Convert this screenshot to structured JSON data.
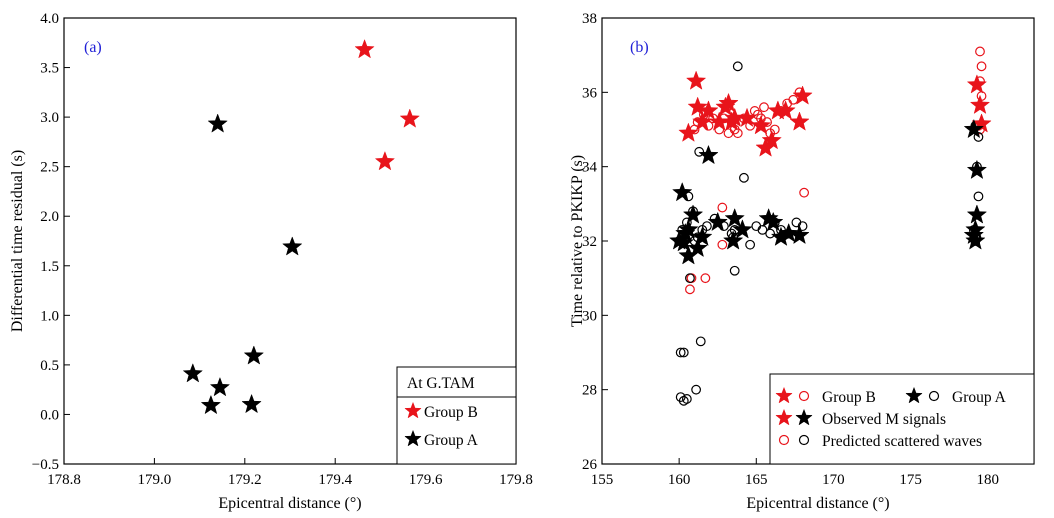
{
  "colors": {
    "group_b": "#e8141b",
    "group_a": "#000000",
    "panel_label": "#1f1fd6"
  },
  "chart_data": [
    {
      "type": "scatter",
      "panel_label": "(a)",
      "xlabel": "Epicentral distance (°)",
      "ylabel": "Differential time residual (s)",
      "xlim": [
        178.8,
        179.8
      ],
      "ylim": [
        -0.5,
        4.0
      ],
      "xticks": [
        178.8,
        179.0,
        179.2,
        179.4,
        179.6,
        179.8
      ],
      "xtick_labels": [
        "178.8",
        "179.0",
        "179.2",
        "179.4",
        "179.6",
        "179.8"
      ],
      "yticks": [
        -0.5,
        0.0,
        0.5,
        1.0,
        1.5,
        2.0,
        2.5,
        3.0,
        3.5,
        4.0
      ],
      "ytick_labels": [
        "−0.5",
        "0.0",
        "0.5",
        "1.0",
        "1.5",
        "2.0",
        "2.5",
        "3.0",
        "3.5",
        "4.0"
      ],
      "legend": {
        "title": "At G.TAM",
        "location": "lower-right",
        "entries": [
          "Group B",
          "Group A"
        ]
      },
      "series": [
        {
          "name": "Group B",
          "marker": "star",
          "color": "#e8141b",
          "x": [
            179.465,
            179.565,
            179.51
          ],
          "y": [
            3.68,
            2.98,
            2.55
          ]
        },
        {
          "name": "Group A",
          "marker": "star",
          "color": "#000000",
          "x": [
            179.14,
            179.305,
            179.085,
            179.145,
            179.22,
            179.125,
            179.215
          ],
          "y": [
            2.93,
            1.69,
            0.41,
            0.27,
            0.59,
            0.09,
            0.1
          ]
        }
      ]
    },
    {
      "type": "scatter",
      "panel_label": "(b)",
      "xlabel": "Epicentral distance (°)",
      "ylabel": "Time relative to PKIKP (s)",
      "xlim": [
        155,
        183
      ],
      "ylim": [
        26,
        38
      ],
      "xticks": [
        155,
        160,
        165,
        170,
        175,
        180
      ],
      "xtick_labels": [
        "155",
        "160",
        "165",
        "170",
        "175",
        "180"
      ],
      "yticks": [
        26,
        28,
        30,
        32,
        34,
        36,
        38
      ],
      "ytick_labels": [
        "26",
        "28",
        "30",
        "32",
        "34",
        "36",
        "38"
      ],
      "legend": {
        "location": "lower-right",
        "rows": [
          {
            "text": "Group B",
            "symbols": [
              "red-star",
              "red-circle"
            ]
          },
          {
            "text": "Group A",
            "symbols": [
              "black-star",
              "black-circle"
            ]
          },
          {
            "text": "Observed M signals",
            "symbols": [
              "red-star",
              "black-star"
            ]
          },
          {
            "text": "Predicted scattered waves",
            "symbols": [
              "red-circle",
              "black-circle"
            ]
          }
        ]
      },
      "series": [
        {
          "name": "Group B",
          "marker": "star",
          "color": "#e8141b",
          "x": [
            160.6,
            161.1,
            161.2,
            161.5,
            161.9,
            162.6,
            163.0,
            163.2,
            163.4,
            163.6,
            164.4,
            165.3,
            165.6,
            166.0,
            166.4,
            166.9,
            167.8,
            168.0,
            179.3,
            179.5,
            179.6
          ],
          "y": [
            34.9,
            36.3,
            35.6,
            35.2,
            35.5,
            35.2,
            35.6,
            35.7,
            35.2,
            35.3,
            35.3,
            35.1,
            34.5,
            34.7,
            35.5,
            35.5,
            35.2,
            35.9,
            36.2,
            35.65,
            35.15
          ]
        },
        {
          "name": "Group B predicted",
          "marker": "circle",
          "color": "#e8141b",
          "x": [
            160.7,
            161.0,
            161.2,
            161.6,
            161.9,
            162.2,
            162.6,
            162.8,
            162.9,
            163.1,
            163.2,
            163.4,
            163.6,
            163.8,
            164.2,
            164.6,
            164.9,
            165.1,
            165.3,
            165.5,
            165.7,
            165.9,
            166.2,
            166.6,
            167.0,
            167.4,
            167.8,
            168.1,
            160.8,
            161.7,
            162.8,
            179.5,
            179.6,
            179.5,
            179.4,
            179.6,
            179.5
          ],
          "y": [
            30.7,
            35.0,
            35.2,
            35.4,
            35.1,
            35.3,
            35.0,
            32.9,
            35.3,
            35.6,
            34.9,
            35.2,
            35.0,
            34.9,
            35.3,
            35.1,
            35.5,
            35.4,
            35.3,
            35.6,
            35.2,
            34.9,
            35.0,
            35.5,
            35.7,
            35.8,
            36.0,
            33.3,
            31.0,
            31.0,
            31.9,
            37.1,
            36.7,
            36.3,
            35.1,
            35.9,
            35.0
          ]
        },
        {
          "name": "Group A",
          "marker": "star",
          "color": "#000000",
          "x": [
            160.0,
            160.2,
            160.4,
            160.6,
            160.9,
            161.2,
            161.5,
            161.9,
            162.5,
            163.5,
            163.6,
            164.1,
            165.8,
            166.1,
            166.6,
            167.1,
            167.8,
            179.1,
            179.3,
            179.3,
            179.2,
            179.2,
            179.1,
            160.3,
            160.6
          ],
          "y": [
            32.0,
            33.3,
            32.2,
            31.6,
            32.7,
            31.8,
            32.1,
            34.3,
            32.5,
            32.0,
            32.6,
            32.3,
            32.6,
            32.5,
            32.1,
            32.2,
            32.15,
            35.0,
            33.9,
            32.7,
            32.3,
            32.0,
            32.15,
            31.95,
            32.3
          ]
        },
        {
          "name": "Group A predicted",
          "marker": "circle",
          "color": "#000000",
          "x": [
            160.0,
            160.2,
            160.1,
            160.3,
            160.5,
            160.7,
            160.9,
            161.2,
            161.5,
            161.8,
            162.3,
            162.9,
            163.4,
            163.6,
            163.8,
            164.2,
            164.6,
            165.0,
            165.4,
            165.9,
            166.2,
            166.6,
            167.1,
            167.6,
            168.0,
            160.1,
            160.3,
            160.5,
            161.1,
            161.4,
            163.5,
            163.6,
            179.2,
            179.3,
            179.4,
            179.1,
            179.2,
            179.4,
            179.2,
            160.6,
            161.0,
            161.3
          ],
          "y": [
            32.0,
            32.3,
            29.0,
            29.0,
            32.5,
            31.0,
            32.8,
            32.1,
            32.3,
            32.4,
            32.6,
            32.4,
            32.2,
            31.2,
            36.7,
            33.7,
            31.9,
            32.4,
            32.3,
            32.2,
            32.5,
            32.3,
            32.2,
            32.5,
            32.4,
            27.8,
            27.7,
            27.75,
            28.0,
            29.3,
            32.1,
            32.3,
            35.1,
            34.0,
            33.2,
            32.3,
            32.0,
            34.8,
            32.1,
            33.2,
            32.0,
            34.4
          ]
        }
      ]
    }
  ]
}
